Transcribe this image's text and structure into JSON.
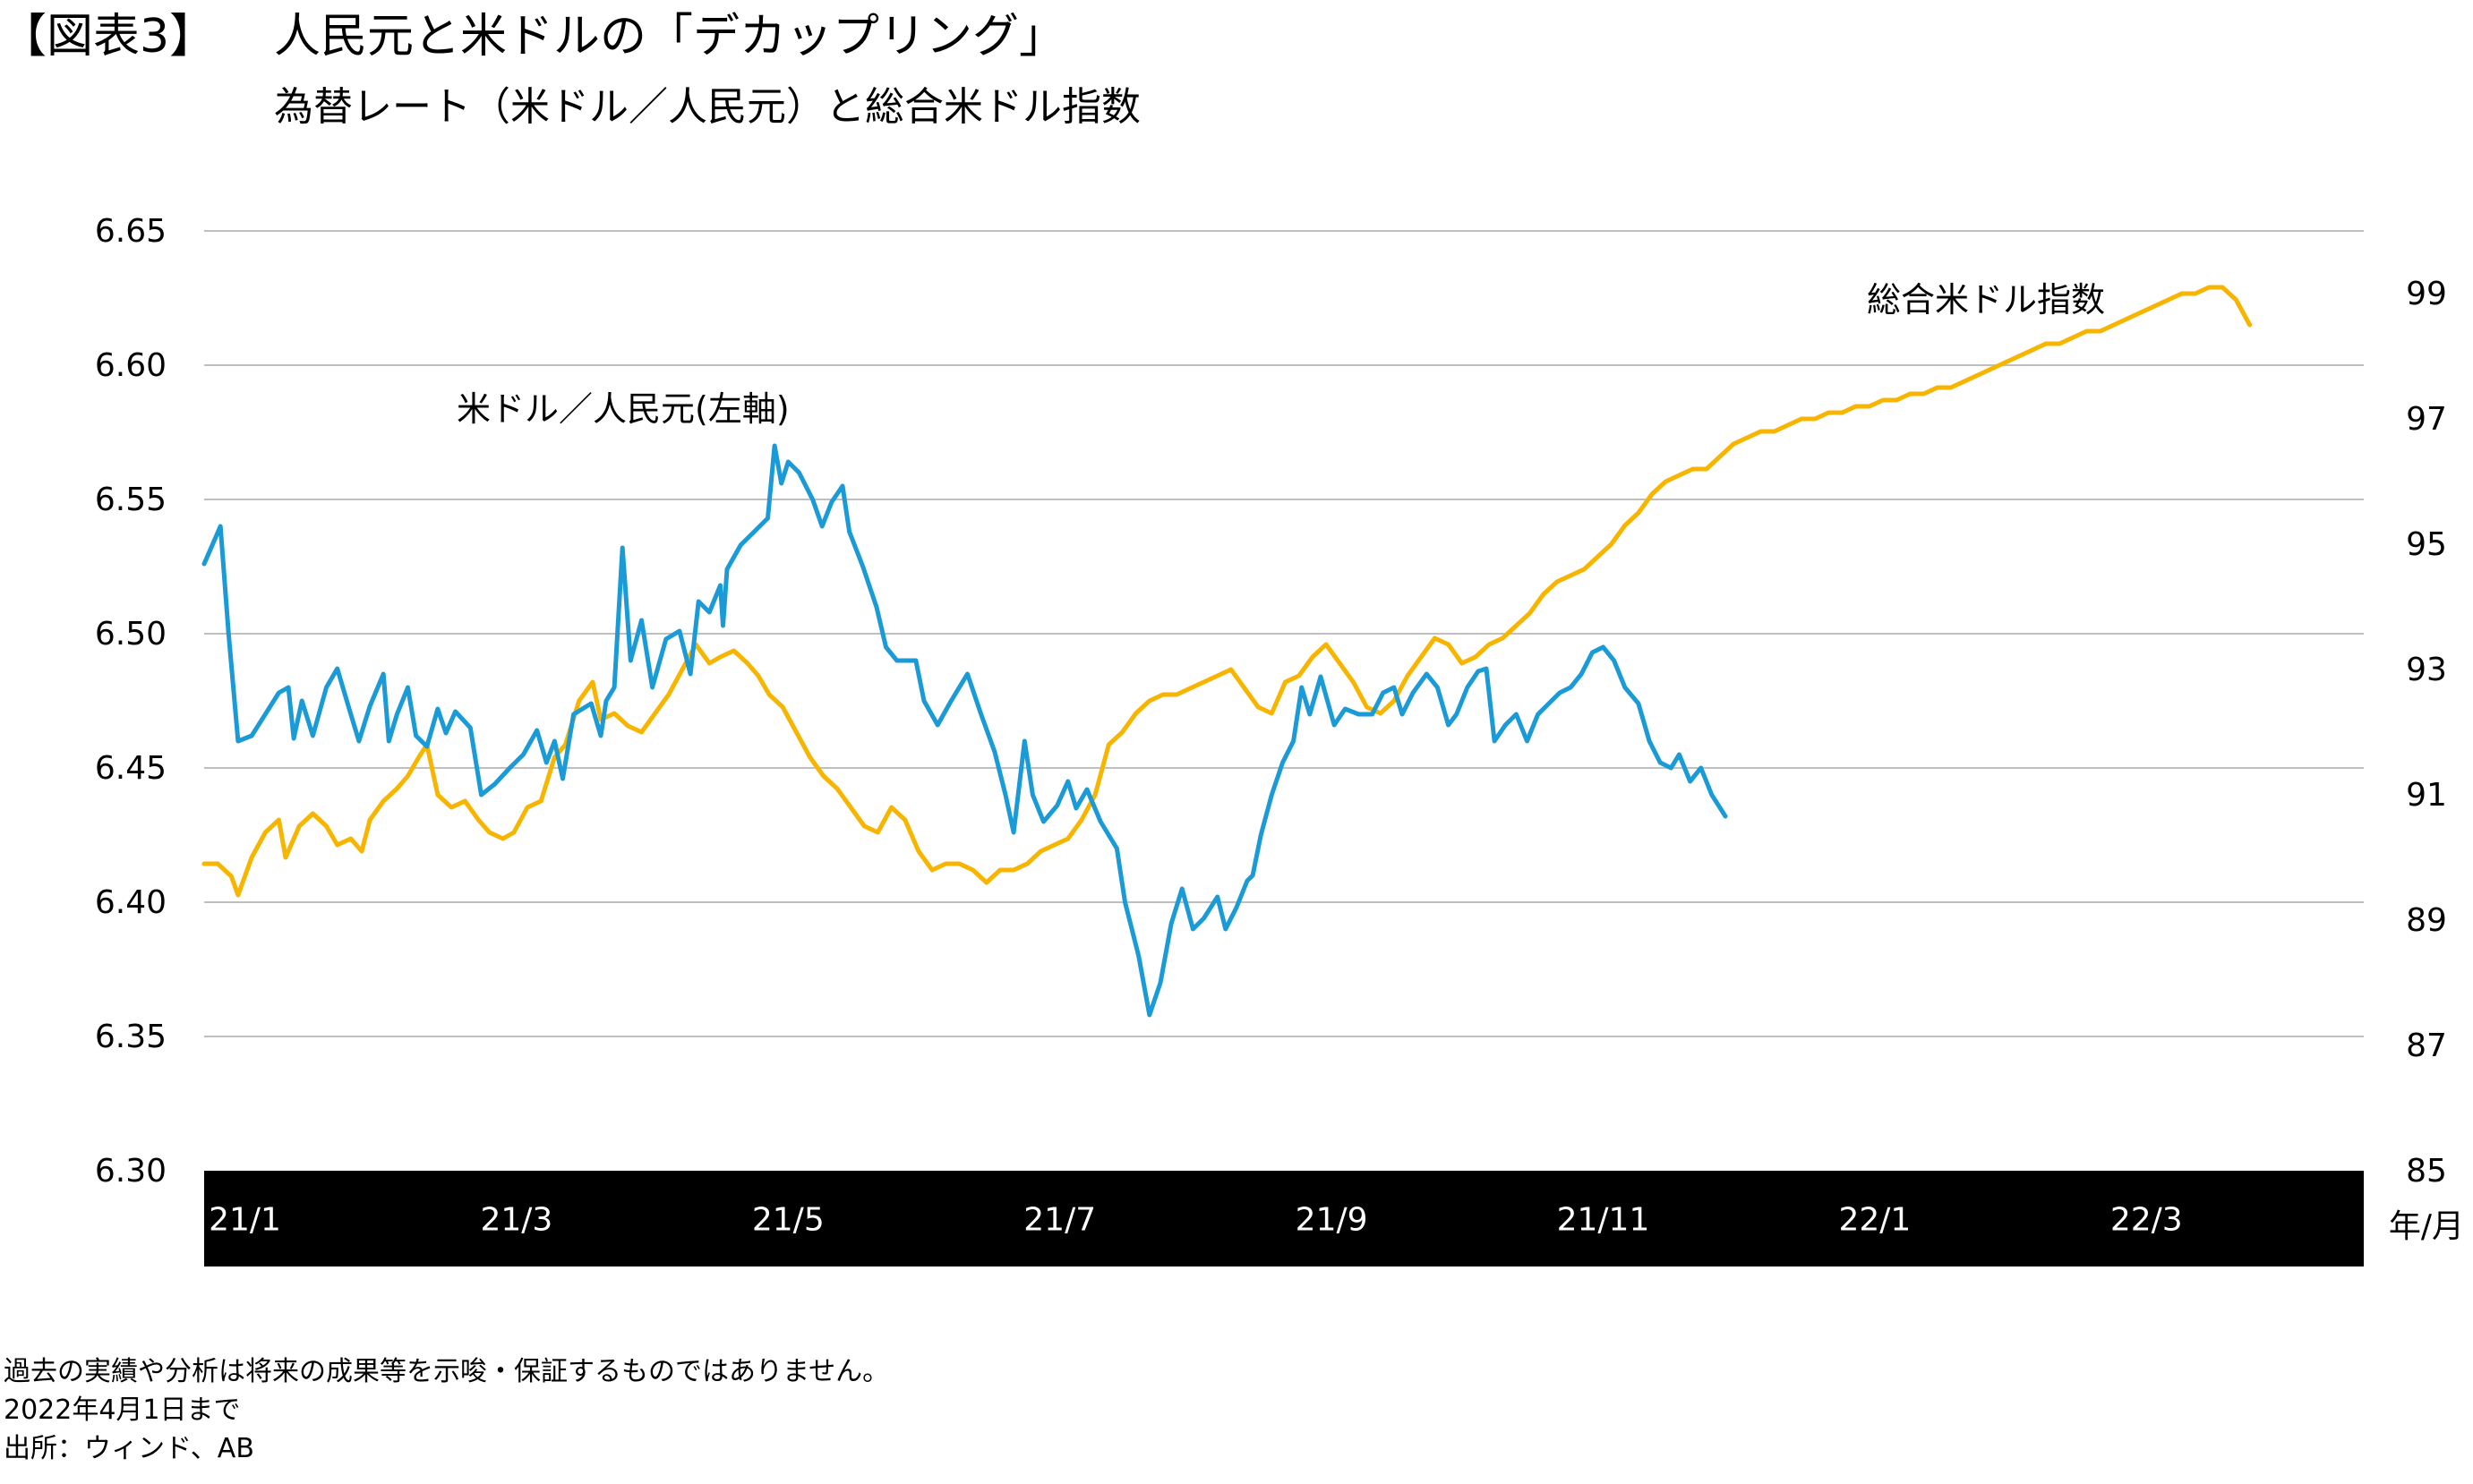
{
  "header": {
    "figure_label": "【図表3】",
    "title": "人民元と米ドルの「デカップリング」",
    "subtitle": "為替レート（米ドル／人民元）と総合米ドル指数"
  },
  "footnotes": [
    "過去の実績や分析は将来の成果等を示唆・保証するものではありません。",
    "2022年4月1日まで",
    "出所：ウィンド、AB"
  ],
  "colors": {
    "usd_cny": "#1a9ad6",
    "dxy": "#f7b500",
    "grid": "#bfbfbf",
    "xaxis_band": "#000000"
  },
  "chart_data": {
    "type": "line",
    "title": "為替レート（米ドル／人民元）と総合米ドル指数",
    "x_unit_label": "年/月",
    "x_range": [
      -0.3,
      15.6
    ],
    "x_ticks": [
      {
        "label": "21/1",
        "pos": 0
      },
      {
        "label": "21/3",
        "pos": 2
      },
      {
        "label": "21/5",
        "pos": 4
      },
      {
        "label": "21/7",
        "pos": 6
      },
      {
        "label": "21/9",
        "pos": 8
      },
      {
        "label": "21/11",
        "pos": 10
      },
      {
        "label": "22/1",
        "pos": 12
      },
      {
        "label": "22/3",
        "pos": 14
      }
    ],
    "y_left": {
      "min": 6.3,
      "max": 6.65,
      "ticks": [
        "6.30",
        "6.35",
        "6.40",
        "6.45",
        "6.50",
        "6.55",
        "6.60",
        "6.65"
      ]
    },
    "y_right": {
      "min": 85,
      "max": 100,
      "ticks": [
        "85",
        "87",
        "89",
        "91",
        "93",
        "95",
        "97",
        "99"
      ]
    },
    "gridlines": true,
    "series": [
      {
        "name": "米ドル／人民元(左軸)",
        "axis": "left",
        "annotation": "米ドル／人民元(左軸)",
        "points": [
          [
            -0.3,
            6.526
          ],
          [
            -0.18,
            6.54
          ],
          [
            -0.12,
            6.5
          ],
          [
            -0.05,
            6.46
          ],
          [
            0.05,
            6.462
          ],
          [
            0.15,
            6.47
          ],
          [
            0.25,
            6.478
          ],
          [
            0.32,
            6.48
          ],
          [
            0.36,
            6.461
          ],
          [
            0.42,
            6.475
          ],
          [
            0.5,
            6.462
          ],
          [
            0.6,
            6.48
          ],
          [
            0.68,
            6.487
          ],
          [
            0.78,
            6.47
          ],
          [
            0.84,
            6.46
          ],
          [
            0.92,
            6.473
          ],
          [
            1.02,
            6.485
          ],
          [
            1.06,
            6.46
          ],
          [
            1.12,
            6.47
          ],
          [
            1.2,
            6.48
          ],
          [
            1.26,
            6.462
          ],
          [
            1.34,
            6.458
          ],
          [
            1.42,
            6.472
          ],
          [
            1.48,
            6.463
          ],
          [
            1.55,
            6.471
          ],
          [
            1.66,
            6.465
          ],
          [
            1.74,
            6.44
          ],
          [
            1.84,
            6.444
          ],
          [
            1.95,
            6.45
          ],
          [
            2.05,
            6.455
          ],
          [
            2.15,
            6.464
          ],
          [
            2.22,
            6.452
          ],
          [
            2.28,
            6.46
          ],
          [
            2.34,
            6.446
          ],
          [
            2.42,
            6.47
          ],
          [
            2.55,
            6.474
          ],
          [
            2.62,
            6.462
          ],
          [
            2.66,
            6.475
          ],
          [
            2.72,
            6.48
          ],
          [
            2.78,
            6.532
          ],
          [
            2.84,
            6.49
          ],
          [
            2.92,
            6.505
          ],
          [
            3.0,
            6.48
          ],
          [
            3.1,
            6.498
          ],
          [
            3.2,
            6.501
          ],
          [
            3.28,
            6.485
          ],
          [
            3.34,
            6.512
          ],
          [
            3.42,
            6.508
          ],
          [
            3.5,
            6.518
          ],
          [
            3.52,
            6.503
          ],
          [
            3.55,
            6.524
          ],
          [
            3.65,
            6.533
          ],
          [
            3.75,
            6.538
          ],
          [
            3.85,
            6.543
          ],
          [
            3.9,
            6.57
          ],
          [
            3.95,
            6.556
          ],
          [
            4.0,
            6.564
          ],
          [
            4.08,
            6.56
          ],
          [
            4.18,
            6.55
          ],
          [
            4.25,
            6.54
          ],
          [
            4.32,
            6.549
          ],
          [
            4.4,
            6.555
          ],
          [
            4.45,
            6.538
          ],
          [
            4.55,
            6.525
          ],
          [
            4.65,
            6.51
          ],
          [
            4.72,
            6.495
          ],
          [
            4.8,
            6.49
          ],
          [
            4.9,
            6.49
          ],
          [
            4.94,
            6.49
          ],
          [
            5.0,
            6.475
          ],
          [
            5.1,
            6.466
          ],
          [
            5.2,
            6.475
          ],
          [
            5.32,
            6.485
          ],
          [
            5.42,
            6.47
          ],
          [
            5.52,
            6.456
          ],
          [
            5.6,
            6.44
          ],
          [
            5.66,
            6.426
          ],
          [
            5.74,
            6.46
          ],
          [
            5.8,
            6.44
          ],
          [
            5.88,
            6.43
          ],
          [
            5.98,
            6.436
          ],
          [
            6.06,
            6.445
          ],
          [
            6.12,
            6.435
          ],
          [
            6.2,
            6.442
          ],
          [
            6.3,
            6.43
          ],
          [
            6.42,
            6.42
          ],
          [
            6.48,
            6.4
          ],
          [
            6.58,
            6.38
          ],
          [
            6.66,
            6.358
          ],
          [
            6.74,
            6.37
          ],
          [
            6.82,
            6.392
          ],
          [
            6.9,
            6.405
          ],
          [
            6.98,
            6.39
          ],
          [
            7.06,
            6.394
          ],
          [
            7.16,
            6.402
          ],
          [
            7.22,
            6.39
          ],
          [
            7.3,
            6.398
          ],
          [
            7.38,
            6.408
          ],
          [
            7.42,
            6.41
          ],
          [
            7.48,
            6.425
          ],
          [
            7.56,
            6.44
          ],
          [
            7.64,
            6.452
          ],
          [
            7.72,
            6.46
          ],
          [
            7.78,
            6.48
          ],
          [
            7.84,
            6.47
          ],
          [
            7.92,
            6.484
          ],
          [
            8.02,
            6.466
          ],
          [
            8.1,
            6.472
          ],
          [
            8.2,
            6.47
          ],
          [
            8.3,
            6.47
          ],
          [
            8.38,
            6.478
          ],
          [
            8.46,
            6.48
          ],
          [
            8.52,
            6.47
          ],
          [
            8.6,
            6.478
          ],
          [
            8.7,
            6.485
          ],
          [
            8.78,
            6.48
          ],
          [
            8.86,
            6.466
          ],
          [
            8.92,
            6.47
          ],
          [
            9.0,
            6.48
          ],
          [
            9.08,
            6.486
          ],
          [
            9.14,
            6.487
          ],
          [
            9.2,
            6.46
          ],
          [
            9.28,
            6.466
          ],
          [
            9.36,
            6.47
          ],
          [
            9.44,
            6.46
          ],
          [
            9.52,
            6.47
          ],
          [
            9.6,
            6.474
          ],
          [
            9.68,
            6.478
          ],
          [
            9.76,
            6.48
          ],
          [
            9.84,
            6.485
          ],
          [
            9.92,
            6.493
          ],
          [
            10.0,
            6.495
          ],
          [
            10.08,
            6.49
          ],
          [
            10.16,
            6.48
          ],
          [
            10.26,
            6.474
          ],
          [
            10.34,
            6.46
          ],
          [
            10.42,
            6.452
          ],
          [
            10.5,
            6.45
          ],
          [
            10.56,
            6.455
          ],
          [
            10.64,
            6.445
          ],
          [
            10.72,
            6.45
          ],
          [
            10.8,
            6.44
          ],
          [
            10.9,
            6.432
          ]
        ]
      },
      {
        "name": "総合米ドル指数",
        "axis": "right",
        "annotation": "総合米ドル指数",
        "points": [
          [
            -0.3,
            89.9
          ],
          [
            -0.2,
            89.9
          ],
          [
            -0.1,
            89.7
          ],
          [
            -0.05,
            89.4
          ],
          [
            0.05,
            90.0
          ],
          [
            0.15,
            90.4
          ],
          [
            0.25,
            90.6
          ],
          [
            0.3,
            90.0
          ],
          [
            0.4,
            90.5
          ],
          [
            0.5,
            90.7
          ],
          [
            0.6,
            90.5
          ],
          [
            0.68,
            90.2
          ],
          [
            0.78,
            90.3
          ],
          [
            0.86,
            90.1
          ],
          [
            0.92,
            90.6
          ],
          [
            1.02,
            90.9
          ],
          [
            1.12,
            91.1
          ],
          [
            1.2,
            91.3
          ],
          [
            1.28,
            91.6
          ],
          [
            1.34,
            91.8
          ],
          [
            1.42,
            91.0
          ],
          [
            1.52,
            90.8
          ],
          [
            1.62,
            90.9
          ],
          [
            1.72,
            90.6
          ],
          [
            1.8,
            90.4
          ],
          [
            1.9,
            90.3
          ],
          [
            1.98,
            90.4
          ],
          [
            2.08,
            90.8
          ],
          [
            2.18,
            90.9
          ],
          [
            2.28,
            91.6
          ],
          [
            2.36,
            91.8
          ],
          [
            2.46,
            92.5
          ],
          [
            2.56,
            92.8
          ],
          [
            2.62,
            92.2
          ],
          [
            2.72,
            92.3
          ],
          [
            2.82,
            92.1
          ],
          [
            2.92,
            92.0
          ],
          [
            3.02,
            92.3
          ],
          [
            3.12,
            92.6
          ],
          [
            3.22,
            93.0
          ],
          [
            3.32,
            93.4
          ],
          [
            3.42,
            93.1
          ],
          [
            3.5,
            93.2
          ],
          [
            3.6,
            93.3
          ],
          [
            3.7,
            93.1
          ],
          [
            3.78,
            92.9
          ],
          [
            3.86,
            92.6
          ],
          [
            3.96,
            92.4
          ],
          [
            4.06,
            92.0
          ],
          [
            4.16,
            91.6
          ],
          [
            4.26,
            91.3
          ],
          [
            4.36,
            91.1
          ],
          [
            4.46,
            90.8
          ],
          [
            4.56,
            90.5
          ],
          [
            4.66,
            90.4
          ],
          [
            4.76,
            90.8
          ],
          [
            4.86,
            90.6
          ],
          [
            4.96,
            90.1
          ],
          [
            5.06,
            89.8
          ],
          [
            5.16,
            89.9
          ],
          [
            5.26,
            89.9
          ],
          [
            5.36,
            89.8
          ],
          [
            5.46,
            89.6
          ],
          [
            5.56,
            89.8
          ],
          [
            5.66,
            89.8
          ],
          [
            5.76,
            89.9
          ],
          [
            5.86,
            90.1
          ],
          [
            5.96,
            90.2
          ],
          [
            6.06,
            90.3
          ],
          [
            6.16,
            90.6
          ],
          [
            6.26,
            91.0
          ],
          [
            6.36,
            91.8
          ],
          [
            6.46,
            92.0
          ],
          [
            6.56,
            92.3
          ],
          [
            6.66,
            92.5
          ],
          [
            6.76,
            92.6
          ],
          [
            6.86,
            92.6
          ],
          [
            6.96,
            92.7
          ],
          [
            7.06,
            92.8
          ],
          [
            7.16,
            92.9
          ],
          [
            7.26,
            93.0
          ],
          [
            7.36,
            92.7
          ],
          [
            7.46,
            92.4
          ],
          [
            7.56,
            92.3
          ],
          [
            7.66,
            92.8
          ],
          [
            7.76,
            92.9
          ],
          [
            7.86,
            93.2
          ],
          [
            7.96,
            93.4
          ],
          [
            8.06,
            93.1
          ],
          [
            8.16,
            92.8
          ],
          [
            8.26,
            92.4
          ],
          [
            8.36,
            92.3
          ],
          [
            8.46,
            92.5
          ],
          [
            8.56,
            92.9
          ],
          [
            8.66,
            93.2
          ],
          [
            8.76,
            93.5
          ],
          [
            8.86,
            93.4
          ],
          [
            8.96,
            93.1
          ],
          [
            9.06,
            93.2
          ],
          [
            9.16,
            93.4
          ],
          [
            9.26,
            93.5
          ],
          [
            9.36,
            93.7
          ],
          [
            9.46,
            93.9
          ],
          [
            9.56,
            94.2
          ],
          [
            9.66,
            94.4
          ],
          [
            9.76,
            94.5
          ],
          [
            9.86,
            94.6
          ],
          [
            9.96,
            94.8
          ],
          [
            10.06,
            95.0
          ],
          [
            10.16,
            95.3
          ],
          [
            10.26,
            95.5
          ],
          [
            10.36,
            95.8
          ],
          [
            10.46,
            96.0
          ],
          [
            10.56,
            96.1
          ],
          [
            10.66,
            96.2
          ],
          [
            10.76,
            96.2
          ],
          [
            10.86,
            96.4
          ],
          [
            10.96,
            96.6
          ],
          [
            11.06,
            96.7
          ],
          [
            11.16,
            96.8
          ],
          [
            11.26,
            96.8
          ],
          [
            11.36,
            96.9
          ],
          [
            11.46,
            97.0
          ],
          [
            11.56,
            97.0
          ],
          [
            11.66,
            97.1
          ],
          [
            11.76,
            97.1
          ],
          [
            11.86,
            97.2
          ],
          [
            11.96,
            97.2
          ],
          [
            12.06,
            97.3
          ],
          [
            12.16,
            97.3
          ],
          [
            12.26,
            97.4
          ],
          [
            12.36,
            97.4
          ],
          [
            12.46,
            97.5
          ],
          [
            12.56,
            97.5
          ],
          [
            12.66,
            97.6
          ],
          [
            12.76,
            97.7
          ],
          [
            12.86,
            97.8
          ],
          [
            12.96,
            97.9
          ],
          [
            13.06,
            98.0
          ],
          [
            13.16,
            98.1
          ],
          [
            13.26,
            98.2
          ],
          [
            13.36,
            98.2
          ],
          [
            13.46,
            98.3
          ],
          [
            13.56,
            98.4
          ],
          [
            13.66,
            98.4
          ],
          [
            13.76,
            98.5
          ],
          [
            13.86,
            98.6
          ],
          [
            13.96,
            98.7
          ],
          [
            14.06,
            98.8
          ],
          [
            14.16,
            98.9
          ],
          [
            14.26,
            99.0
          ],
          [
            14.36,
            99.0
          ],
          [
            14.46,
            99.1
          ],
          [
            14.56,
            99.1
          ],
          [
            14.66,
            98.9
          ],
          [
            14.76,
            98.5
          ]
        ]
      }
    ]
  }
}
